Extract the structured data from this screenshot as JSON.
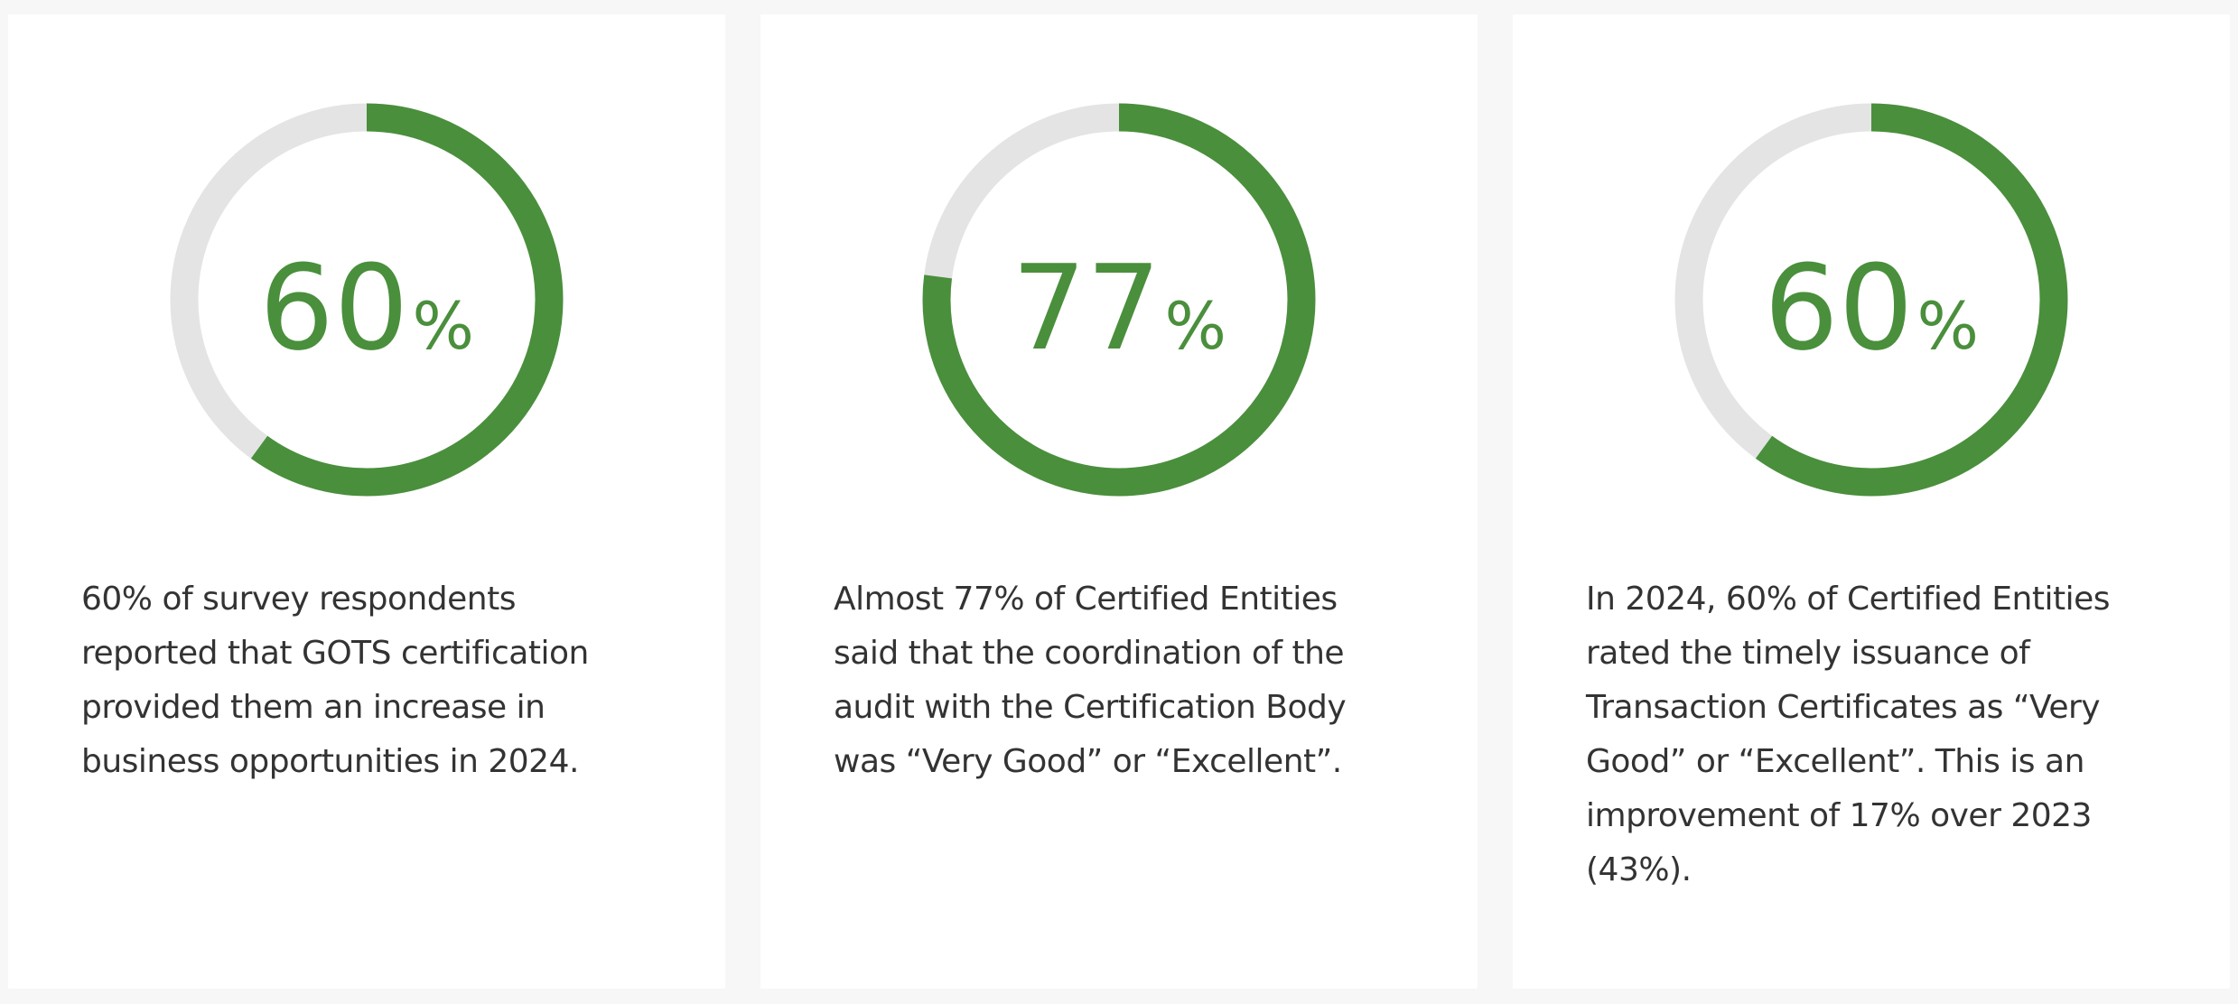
{
  "chart_data": [
    {
      "type": "donut",
      "values": [
        60
      ],
      "unit": "%",
      "ylim": [
        0,
        100
      ],
      "color": "#4a8f3c",
      "track_color": "#e4e4e4",
      "caption": "60% of survey respondents reported that GOTS certification provided them an increase in business opportunities in 2024."
    },
    {
      "type": "donut",
      "values": [
        77
      ],
      "unit": "%",
      "ylim": [
        0,
        100
      ],
      "color": "#4a8f3c",
      "track_color": "#e4e4e4",
      "caption": "Almost 77% of Certified Entities said that the coordination of the audit with the Certification Body was “Very Good” or “Excellent”."
    },
    {
      "type": "donut",
      "values": [
        60
      ],
      "unit": "%",
      "ylim": [
        0,
        100
      ],
      "color": "#4a8f3c",
      "track_color": "#e4e4e4",
      "caption": "In 2024, 60% of Certified Entities rated the timely issuance of Transaction Certificates as “Very Good” or “Excellent”. This is an improvement of 17% over 2023 (43%)."
    }
  ]
}
